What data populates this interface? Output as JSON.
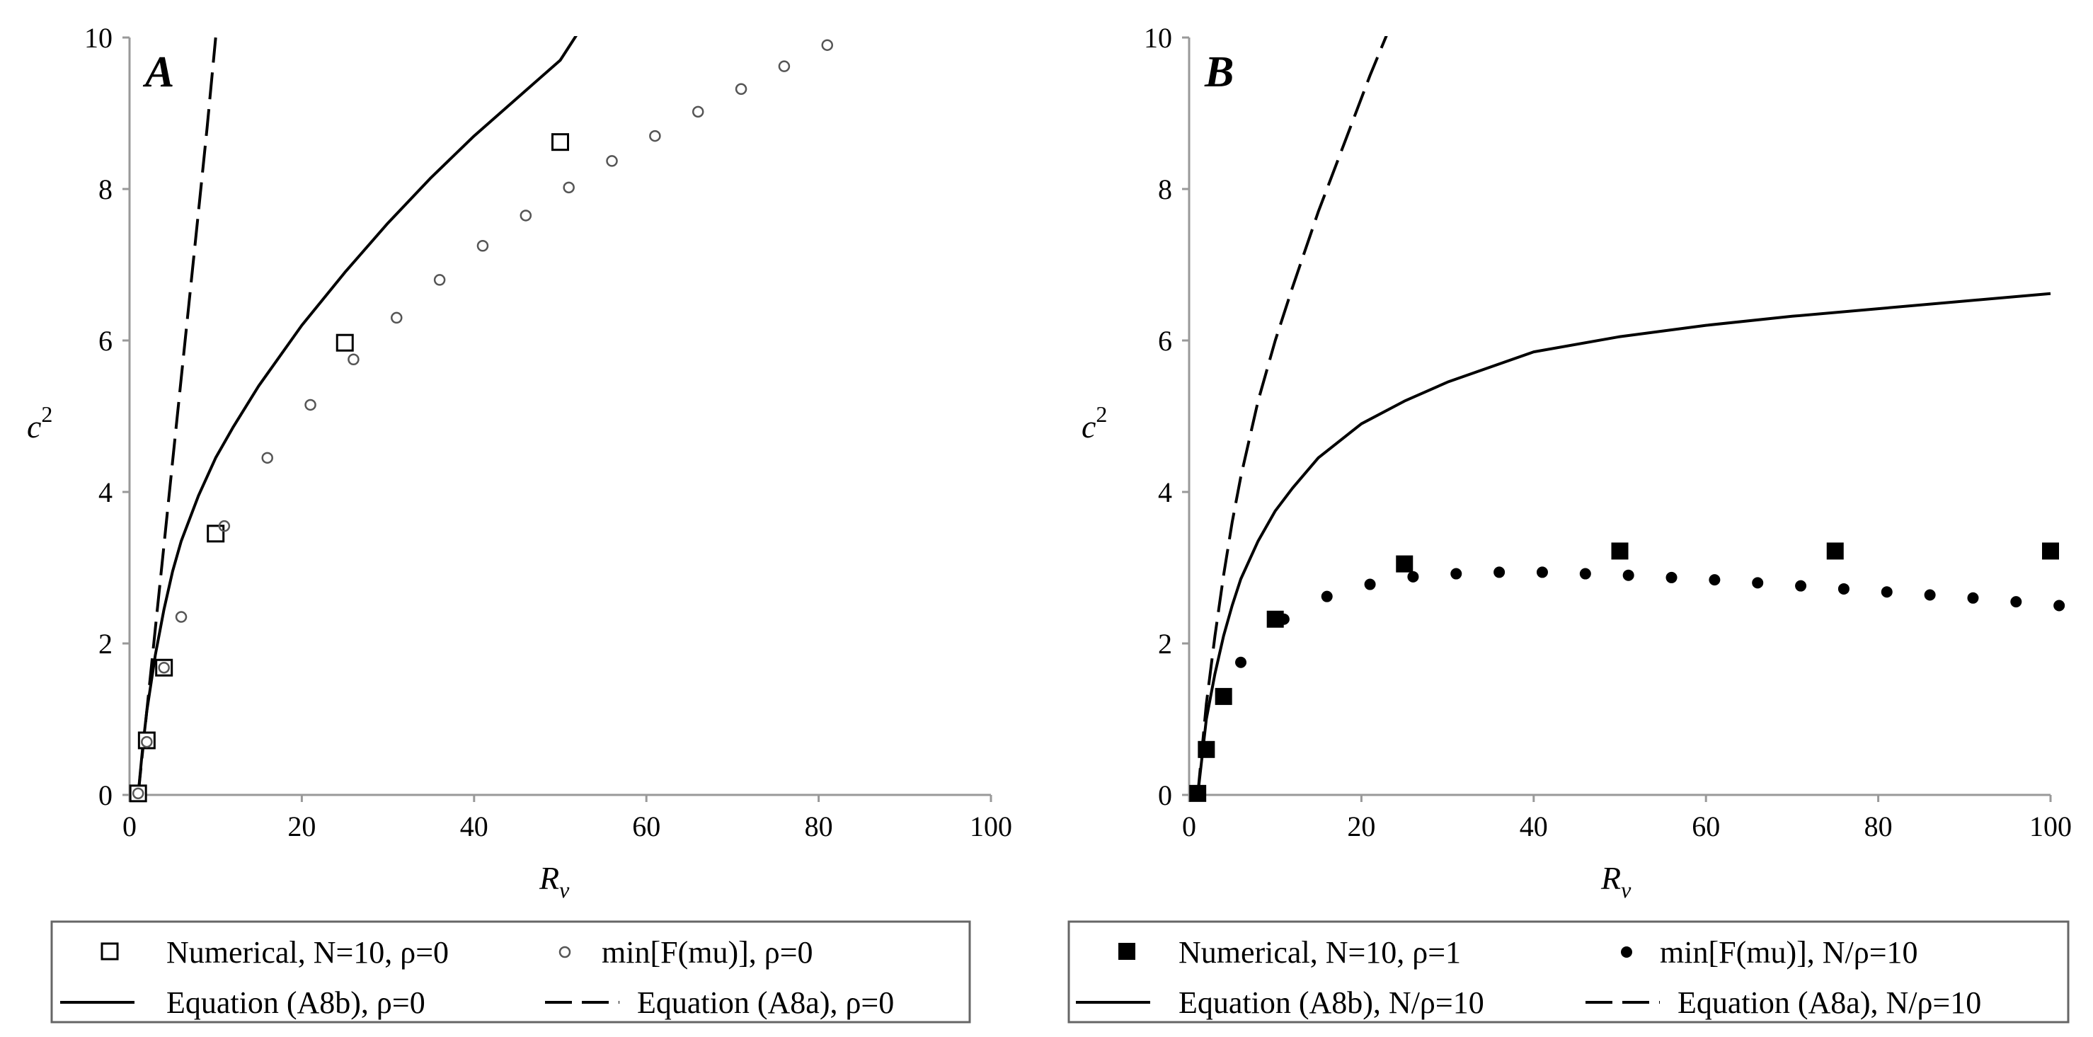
{
  "chart_data": [
    {
      "type": "scatter",
      "panel_label": "A",
      "xlabel": "R_v",
      "ylabel": "c^2",
      "xlim": [
        0,
        100
      ],
      "ylim": [
        0,
        10
      ],
      "xticks": [
        "0",
        "20",
        "40",
        "60",
        "80",
        "100"
      ],
      "yticks": [
        "0",
        "2",
        "4",
        "6",
        "8",
        "10"
      ],
      "grid": false,
      "legend_position": "bottom",
      "series": [
        {
          "name": "Numerical, N=10, ρ=0",
          "kind": "markers",
          "marker": "open-square",
          "x": [
            1,
            2,
            4,
            10,
            25,
            50
          ],
          "y": [
            0.02,
            0.72,
            1.68,
            3.45,
            5.97,
            8.62
          ]
        },
        {
          "name": "min[F(mu)], ρ=0",
          "kind": "markers",
          "marker": "open-circle",
          "x": [
            1,
            2,
            4,
            6,
            11,
            16,
            21,
            26,
            31,
            36,
            41,
            46,
            51,
            56,
            61,
            66,
            71,
            76,
            81
          ],
          "y": [
            0.02,
            0.7,
            1.68,
            2.35,
            3.55,
            4.45,
            5.15,
            5.75,
            6.3,
            6.8,
            7.25,
            7.65,
            8.02,
            8.37,
            8.7,
            9.02,
            9.32,
            9.62,
            9.9
          ]
        },
        {
          "name": "Equation (A8b), ρ=0",
          "kind": "line",
          "dash": "solid",
          "x": [
            1,
            1.5,
            2,
            3,
            4,
            5,
            6,
            8,
            10,
            12,
            15,
            20,
            25,
            30,
            35,
            40,
            45,
            50,
            52
          ],
          "y": [
            0,
            0.6,
            1.1,
            1.85,
            2.45,
            2.95,
            3.35,
            3.95,
            4.45,
            4.85,
            5.4,
            6.2,
            6.9,
            7.55,
            8.15,
            8.7,
            9.2,
            9.7,
            10.05
          ]
        },
        {
          "name": "Equation (A8a), ρ=0",
          "kind": "line",
          "dash": "dashed",
          "x": [
            1,
            2,
            3,
            4,
            5,
            6,
            7,
            8,
            9,
            10
          ],
          "y": [
            0,
            1.1,
            2.2,
            3.3,
            4.4,
            5.5,
            6.6,
            7.7,
            8.8,
            10
          ]
        }
      ]
    },
    {
      "type": "scatter",
      "panel_label": "B",
      "xlabel": "R_v",
      "ylabel": "c^2",
      "xlim": [
        0,
        100
      ],
      "ylim": [
        0,
        10
      ],
      "xticks": [
        "0",
        "20",
        "40",
        "60",
        "80",
        "100"
      ],
      "yticks": [
        "0",
        "2",
        "4",
        "6",
        "8",
        "10"
      ],
      "grid": false,
      "legend_position": "bottom",
      "series": [
        {
          "name": "Numerical, N=10, ρ=1",
          "kind": "markers",
          "marker": "filled-square",
          "x": [
            1,
            2,
            4,
            10,
            25,
            50,
            75,
            100
          ],
          "y": [
            0.02,
            0.6,
            1.3,
            2.32,
            3.05,
            3.22,
            3.22,
            3.22
          ]
        },
        {
          "name": "min[F(mu)], N/ρ=10",
          "kind": "markers",
          "marker": "filled-circle",
          "x": [
            1,
            2,
            4,
            6,
            11,
            16,
            21,
            26,
            31,
            36,
            41,
            46,
            51,
            56,
            61,
            66,
            71,
            76,
            81,
            86,
            91,
            96,
            101
          ],
          "y": [
            0.02,
            0.6,
            1.3,
            1.75,
            2.32,
            2.62,
            2.78,
            2.88,
            2.92,
            2.94,
            2.94,
            2.92,
            2.9,
            2.87,
            2.84,
            2.8,
            2.76,
            2.72,
            2.68,
            2.64,
            2.6,
            2.55,
            2.5
          ]
        },
        {
          "name": "Equation (A8b), N/ρ=10",
          "kind": "line",
          "dash": "solid",
          "x": [
            1,
            2,
            3,
            4,
            5,
            6,
            8,
            10,
            12,
            15,
            20,
            25,
            30,
            40,
            50,
            60,
            70,
            80,
            90,
            100
          ],
          "y": [
            0,
            1.0,
            1.6,
            2.1,
            2.5,
            2.85,
            3.35,
            3.75,
            4.05,
            4.45,
            4.9,
            5.2,
            5.45,
            5.85,
            6.05,
            6.2,
            6.32,
            6.42,
            6.52,
            6.62
          ]
        },
        {
          "name": "Equation (A8a), N/ρ=10",
          "kind": "line",
          "dash": "dashed",
          "x": [
            1,
            2,
            3,
            4,
            5,
            6,
            8,
            10,
            12,
            15,
            18,
            21,
            23
          ],
          "y": [
            0,
            1.2,
            2.1,
            2.9,
            3.6,
            4.2,
            5.2,
            6.0,
            6.7,
            7.7,
            8.6,
            9.5,
            10.05
          ]
        }
      ]
    }
  ]
}
